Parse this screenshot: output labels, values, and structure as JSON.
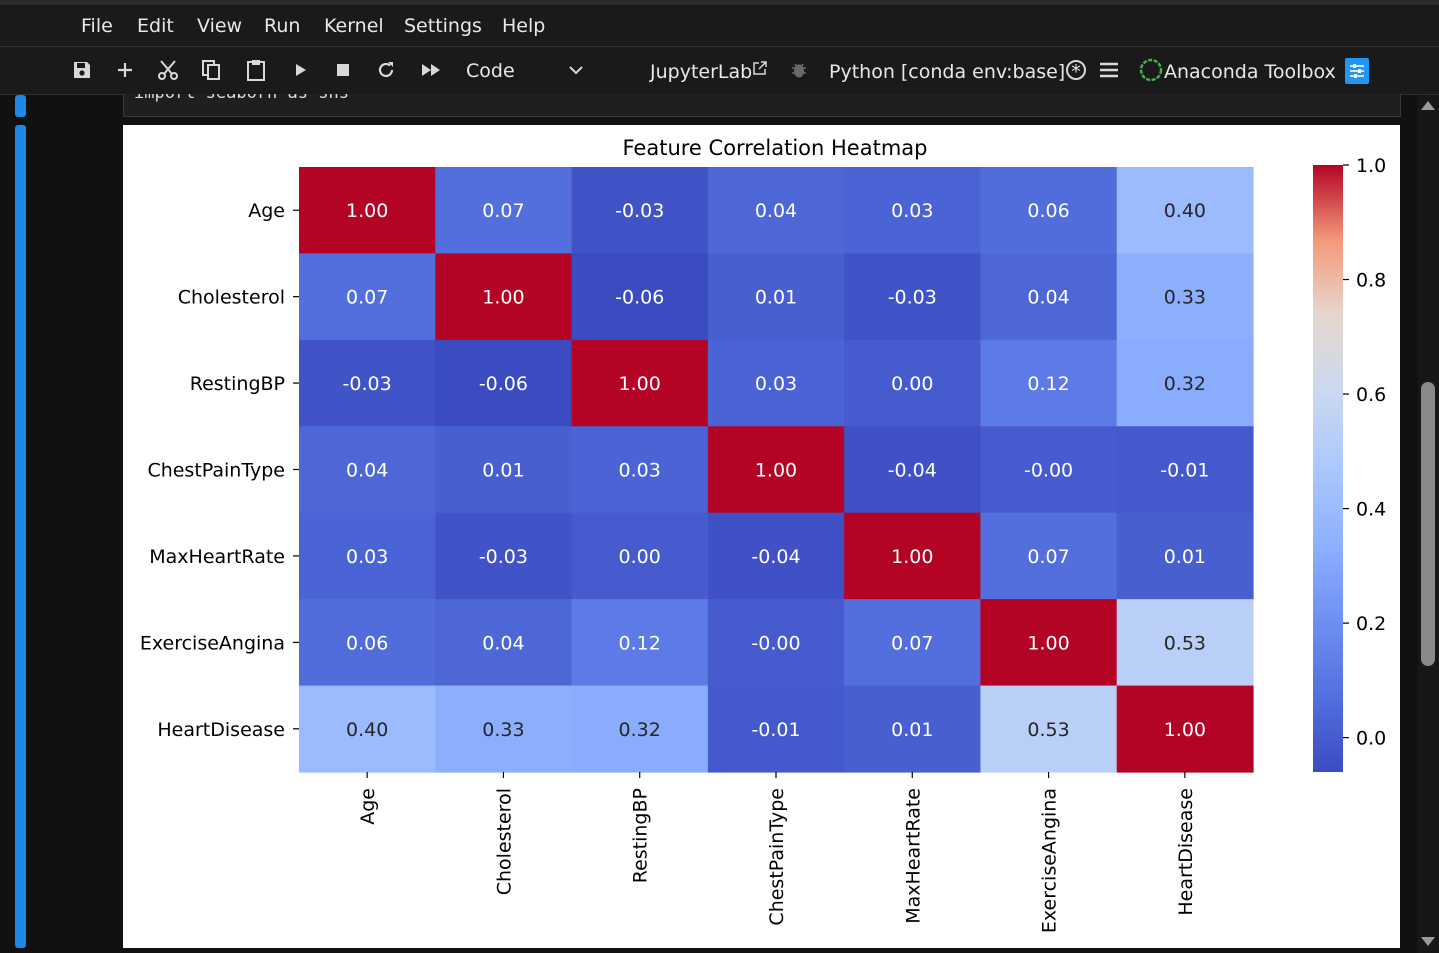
{
  "menu": [
    "File",
    "Edit",
    "View",
    "Run",
    "Kernel",
    "Settings",
    "Help"
  ],
  "toolbar": {
    "cell_type": "Code",
    "jupyterlab_label": "JupyterLab",
    "kernel_label": "Python [conda env:base] *",
    "anaconda_label": "Anaconda Toolbox",
    "icons": [
      "save-icon",
      "add-icon",
      "cut-icon",
      "copy-icon",
      "paste-icon",
      "run-icon",
      "stop-icon",
      "restart-icon",
      "fast-forward-icon",
      "chevron-down-icon",
      "external-link-icon",
      "bug-icon",
      "kernel-status-icon",
      "menu-icon",
      "anaconda-icon",
      "settings-icon"
    ]
  },
  "code_cell": {
    "text": "import seaborn as sns···"
  },
  "colors": {
    "accent": "#1e88e5",
    "background": "#111111",
    "toolbar": "#1a1a1a"
  },
  "chart_data": {
    "type": "heatmap",
    "title": "Feature Correlation Heatmap",
    "labels": [
      "Age",
      "Cholesterol",
      "RestingBP",
      "ChestPainType",
      "MaxHeartRate",
      "ExerciseAngina",
      "HeartDisease"
    ],
    "matrix": [
      [
        1.0,
        0.07,
        -0.03,
        0.04,
        0.03,
        0.06,
        0.4
      ],
      [
        0.07,
        1.0,
        -0.06,
        0.01,
        -0.03,
        0.04,
        0.33
      ],
      [
        -0.03,
        -0.06,
        1.0,
        0.03,
        0.0,
        0.12,
        0.32
      ],
      [
        0.04,
        0.01,
        0.03,
        1.0,
        -0.04,
        -0.0,
        -0.01
      ],
      [
        0.03,
        -0.03,
        0.0,
        -0.04,
        1.0,
        0.07,
        0.01
      ],
      [
        0.06,
        0.04,
        0.12,
        -0.0,
        0.07,
        1.0,
        0.53
      ],
      [
        0.4,
        0.33,
        0.32,
        -0.01,
        0.01,
        0.53,
        1.0
      ]
    ],
    "annot": [
      [
        "1.00",
        "0.07",
        "-0.03",
        "0.04",
        "0.03",
        "0.06",
        "0.40"
      ],
      [
        "0.07",
        "1.00",
        "-0.06",
        "0.01",
        "-0.03",
        "0.04",
        "0.33"
      ],
      [
        "-0.03",
        "-0.06",
        "1.00",
        "0.03",
        "0.00",
        "0.12",
        "0.32"
      ],
      [
        "0.04",
        "0.01",
        "0.03",
        "1.00",
        "-0.04",
        "-0.00",
        "-0.01"
      ],
      [
        "0.03",
        "-0.03",
        "0.00",
        "-0.04",
        "1.00",
        "0.07",
        "0.01"
      ],
      [
        "0.06",
        "0.04",
        "0.12",
        "-0.00",
        "0.07",
        "1.00",
        "0.53"
      ],
      [
        "0.40",
        "0.33",
        "0.32",
        "-0.01",
        "0.01",
        "0.53",
        "1.00"
      ]
    ],
    "colormap": "coolwarm",
    "vmin": -0.06,
    "vmax": 1.0,
    "colorbar_ticks": [
      "0.0",
      "0.2",
      "0.4",
      "0.6",
      "0.8",
      "1.0"
    ],
    "colorbar_tick_values": [
      0.0,
      0.2,
      0.4,
      0.6,
      0.8,
      1.0
    ]
  }
}
